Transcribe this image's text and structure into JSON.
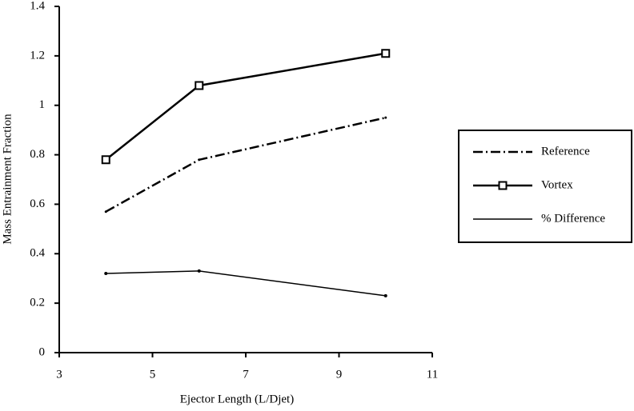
{
  "chart_data": {
    "type": "line",
    "x_label": "Ejector Length (L/Djet)",
    "y_label": "Mass Entrainment Fraction",
    "x": [
      4,
      6,
      10
    ],
    "series": [
      {
        "name": "Reference",
        "color": "#000000",
        "values": [
          0.57,
          0.78,
          0.95
        ],
        "dash": "12 4 2 4",
        "line_width": 2.5,
        "marker": "tick"
      },
      {
        "name": "Vortex",
        "color": "#000000",
        "values": [
          0.78,
          1.08,
          1.21
        ],
        "dash": "none",
        "line_width": 2.5,
        "marker": "square"
      },
      {
        "name": "% Difference",
        "color": "#000000",
        "values": [
          0.32,
          0.33,
          0.23
        ],
        "dash": "none",
        "line_width": 1.5,
        "marker": "dot"
      }
    ],
    "xlim": [
      3,
      11
    ],
    "xticks": [
      3,
      5,
      7,
      9,
      11
    ],
    "ylim": [
      0,
      1.4
    ],
    "yticks": [
      0,
      0.2,
      0.4,
      0.6,
      0.8,
      1,
      1.2,
      1.4
    ],
    "legend": "right"
  }
}
